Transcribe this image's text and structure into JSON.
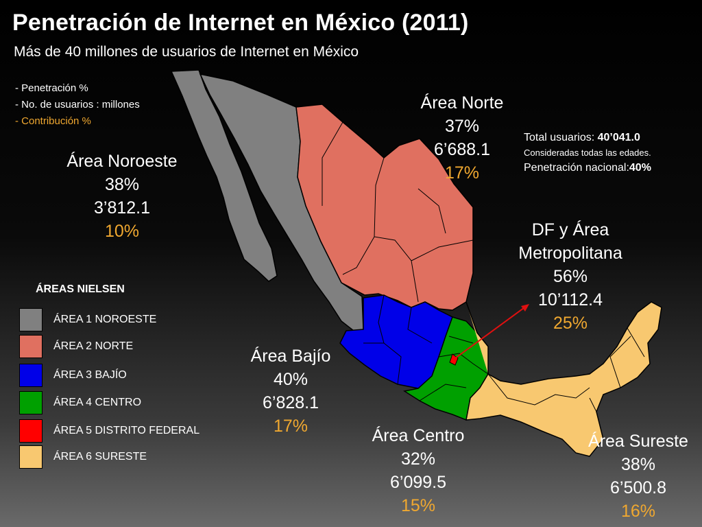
{
  "title": "Penetración de Internet en México (2011)",
  "subtitle": "Más de 40 millones de usuarios de Internet en México",
  "legend_keys": {
    "line1": "- Penetración %",
    "line2": "- No. de usuarios : millones",
    "line3": "- Contribución %"
  },
  "colors": {
    "noroeste": "#808080",
    "norte": "#e07060",
    "bajio": "#0000e8",
    "centro": "#00a000",
    "df": "#ff0000",
    "sureste": "#f8c870",
    "contribution": "#f0a830"
  },
  "areas": {
    "noroeste": {
      "name": "Área Noroeste",
      "penetration": "38%",
      "users": "3’812.1",
      "contribution": "10%"
    },
    "norte": {
      "name": "Área Norte",
      "penetration": "37%",
      "users": "6’688.1",
      "contribution": "17%"
    },
    "df": {
      "name_line1": "DF y Área",
      "name_line2": "Metropolitana",
      "penetration": "56%",
      "users": "10’112.4",
      "contribution": "25%"
    },
    "bajio": {
      "name": "Área Bajío",
      "penetration": "40%",
      "users": "6’828.1",
      "contribution": "17%"
    },
    "centro": {
      "name": "Área Centro",
      "penetration": "32%",
      "users": "6’099.5",
      "contribution": "15%"
    },
    "sureste": {
      "name": "Área Sureste",
      "penetration": "38%",
      "users": "6’500.8",
      "contribution": "16%"
    }
  },
  "total": {
    "label": "Total usuarios: ",
    "value": "40’041.0",
    "note": "Consideradas todas las edades.",
    "national_label": "Penetración nacional:",
    "national_value": "40%"
  },
  "nielsen": {
    "title": "ÁREAS NIELSEN",
    "items": [
      {
        "label": "ÁREA 1 NOROESTE",
        "color": "#808080"
      },
      {
        "label": "ÁREA 2  NORTE",
        "color": "#e07060"
      },
      {
        "label": "ÁREA 3 BAJÍO",
        "color": "#0000e8"
      },
      {
        "label": "ÁREA 4  CENTRO",
        "color": "#00a000"
      },
      {
        "label": "ÁREA 5  DISTRITO FEDERAL",
        "color": "#ff0000"
      },
      {
        "label": "ÁREA 6 SURESTE",
        "color": "#f8c870"
      }
    ]
  }
}
